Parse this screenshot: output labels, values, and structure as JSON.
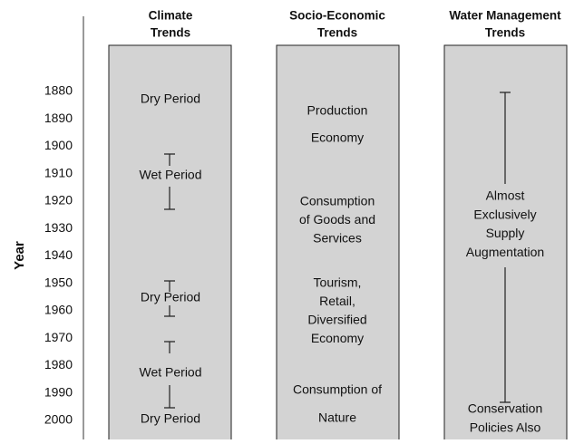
{
  "axis": {
    "label": "Year",
    "ticks": [
      "1880",
      "1890",
      "1900",
      "1910",
      "1920",
      "1930",
      "1940",
      "1950",
      "1960",
      "1970",
      "1980",
      "1990",
      "2000"
    ]
  },
  "columns": [
    {
      "title": [
        "Climate",
        "Trends"
      ],
      "items": [
        "Dry Period",
        "Wet Period",
        "Dry Period",
        "Wet Period",
        "Dry Period"
      ]
    },
    {
      "title": [
        "Socio-Economic",
        "Trends"
      ],
      "items": [
        [
          "Production"
        ],
        [
          "Economy"
        ],
        [
          "Consumption",
          "of Goods and",
          "Services"
        ],
        [
          "Tourism,",
          "Retail,",
          "Diversified",
          "Economy"
        ],
        [
          "Consumption of"
        ],
        [
          "Nature"
        ]
      ]
    },
    {
      "title": [
        "Water Management",
        "Trends"
      ],
      "items": [
        [
          "Almost",
          "Exclusively",
          "Supply",
          "Augmentation"
        ],
        [
          "Conservation",
          "Policies Also"
        ]
      ]
    }
  ]
}
